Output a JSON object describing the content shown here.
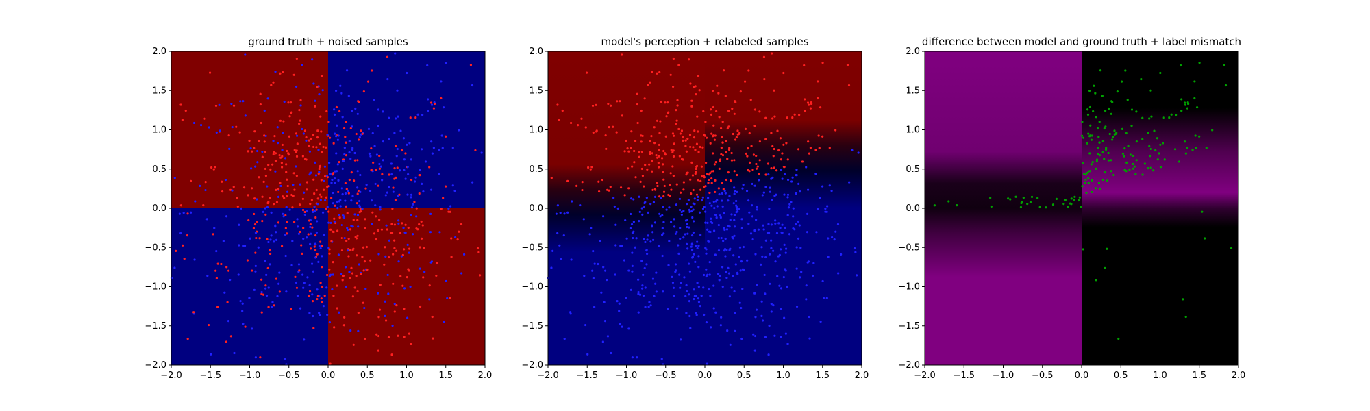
{
  "chart_data": [
    {
      "type": "heatmap",
      "title": "ground truth + noised samples",
      "xlim": [
        -2.0,
        2.0
      ],
      "ylim": [
        -2.0,
        2.0
      ],
      "xticks": [
        "−2.0",
        "−1.5",
        "−1.0",
        "−0.5",
        "0.0",
        "0.5",
        "1.0",
        "1.5",
        "2.0"
      ],
      "yticks": [
        "2.0",
        "1.5",
        "1.0",
        "0.5",
        "0.0",
        "−0.5",
        "−1.0",
        "−1.5",
        "−2.0"
      ],
      "background": "xor quadrants: red (#800000) where x<0,y>0 and x>0,y<0; blue (#000080) elsewhere",
      "scatter": "points colored red/blue (noisy labels)",
      "colors": {
        "red_region": "#800000",
        "blue_region": "#000080",
        "red_point": "#ff2020",
        "blue_point": "#2020ff"
      }
    },
    {
      "type": "heatmap",
      "title": "model's perception + relabeled samples",
      "xlim": [
        -2.0,
        2.0
      ],
      "ylim": [
        -2.0,
        2.0
      ],
      "xticks": [
        "−2.0",
        "−1.5",
        "−1.0",
        "−0.5",
        "0.0",
        "0.5",
        "1.0",
        "1.5",
        "2.0"
      ],
      "yticks": [
        "2.0",
        "1.5",
        "1.0",
        "0.5",
        "0.0",
        "−0.5",
        "−1.0",
        "−1.5",
        "−2.0"
      ],
      "background": "smooth model prediction: red upper region, blue lower region with tilted boundary",
      "scatter": "points relabeled by model (red above boundary, blue below)",
      "colors": {
        "red_region": "#800000",
        "blue_region": "#000080",
        "red_point": "#ff2020",
        "blue_point": "#2020ff"
      }
    },
    {
      "type": "heatmap",
      "title": "difference between model and ground truth + label mismatch",
      "xlim": [
        -2.0,
        2.0
      ],
      "ylim": [
        -2.0,
        2.0
      ],
      "xticks": [
        "−2.0",
        "−1.5",
        "−1.0",
        "−0.5",
        "0.0",
        "0.5",
        "1.0",
        "1.5",
        "2.0"
      ],
      "yticks": [
        "2.0",
        "1.5",
        "1.0",
        "0.5",
        "0.0",
        "−0.5",
        "−1.0",
        "−1.5",
        "−2.0"
      ],
      "background": "magenta where model disagrees with ground truth, black where it agrees",
      "scatter": "green points mark label mismatch",
      "colors": {
        "mismatch_region": "#800080",
        "match_region": "#000000",
        "mismatch_point": "#00a000"
      }
    }
  ]
}
